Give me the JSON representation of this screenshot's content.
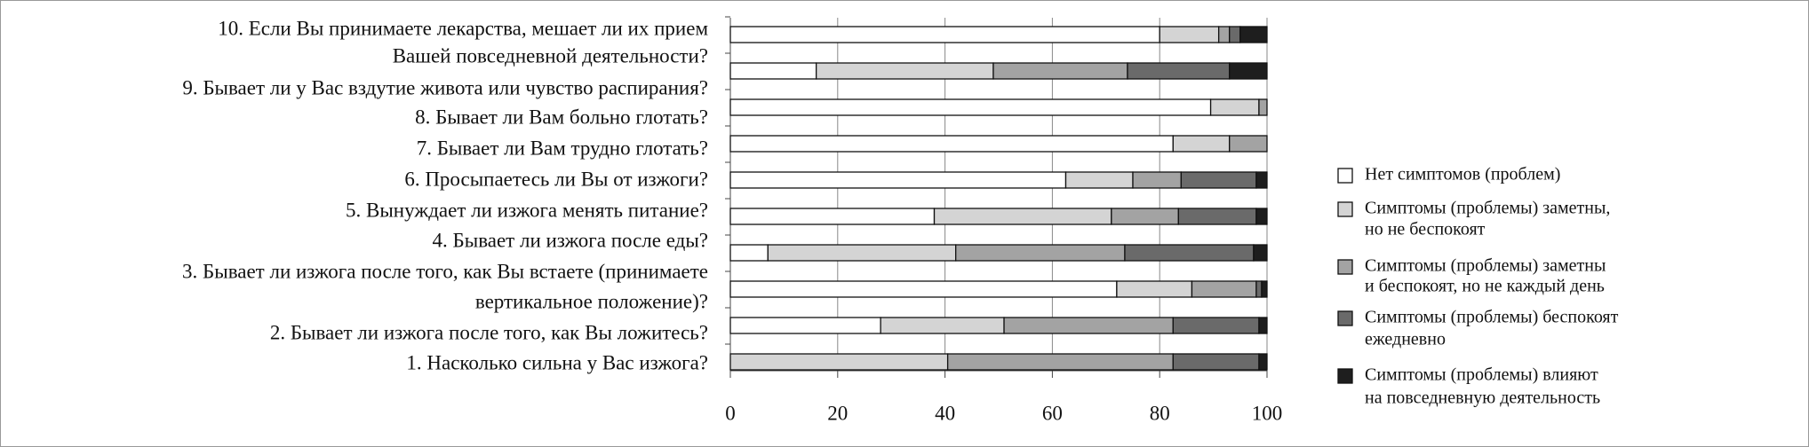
{
  "chart_data": {
    "type": "stacked-bar-horizontal",
    "categories": [
      [
        "10. Если Вы принимаете лекарства, мешает ли их прием",
        "Вашей повседневной деятельности?"
      ],
      [
        "9. Бывает ли у Вас вздутие живота или чувство распирания?"
      ],
      [
        "8. Бывает ли Вам больно глотать?"
      ],
      [
        "7. Бывает ли Вам трудно глотать?"
      ],
      [
        "6. Просыпаетесь ли Вы от изжоги?"
      ],
      [
        "5. Вынуждает ли изжога менять питание?"
      ],
      [
        "4. Бывает ли изжога после еды?"
      ],
      [
        "3. Бывает ли изжога после того, как Вы встаете (принимаете",
        "вертикальное положение)?"
      ],
      [
        "2. Бывает ли изжога после того, как Вы ложитесь?"
      ],
      [
        "1. Насколько сильна у Вас изжога?"
      ]
    ],
    "series": [
      {
        "name": [
          "Нет симптомов (проблем)"
        ],
        "color": "#ffffff",
        "values": [
          80,
          16,
          89.5,
          82.5,
          62.5,
          38,
          7,
          72,
          28,
          0
        ]
      },
      {
        "name": [
          "Симптомы (проблемы) заметны,",
          "но не беспокоят"
        ],
        "color": "#d4d4d4",
        "values": [
          11,
          33,
          9,
          10.5,
          12.5,
          33,
          35,
          14,
          23,
          40.5
        ]
      },
      {
        "name": [
          "Симптомы (проблемы) заметны",
          "и беспокоят, но не каждый день"
        ],
        "color": "#a3a3a3",
        "values": [
          2,
          25,
          1.5,
          7,
          9,
          12.5,
          31.5,
          12,
          31.5,
          42
        ]
      },
      {
        "name": [
          "Симптомы (проблемы) беспокоят",
          "ежедневно"
        ],
        "color": "#6a6a6a",
        "values": [
          2,
          19,
          0,
          0,
          14,
          14.5,
          24,
          1,
          16,
          16
        ]
      },
      {
        "name": [
          "Симптомы (проблемы) влияют",
          "на повседневную деятельность"
        ],
        "color": "#1e1e1e",
        "values": [
          5,
          7,
          0,
          0,
          2,
          2,
          2.5,
          1,
          1.5,
          1.5
        ]
      }
    ],
    "xlim": [
      0,
      100
    ],
    "xticks": [
      0,
      20,
      40,
      60,
      80,
      100
    ],
    "grid": true
  }
}
